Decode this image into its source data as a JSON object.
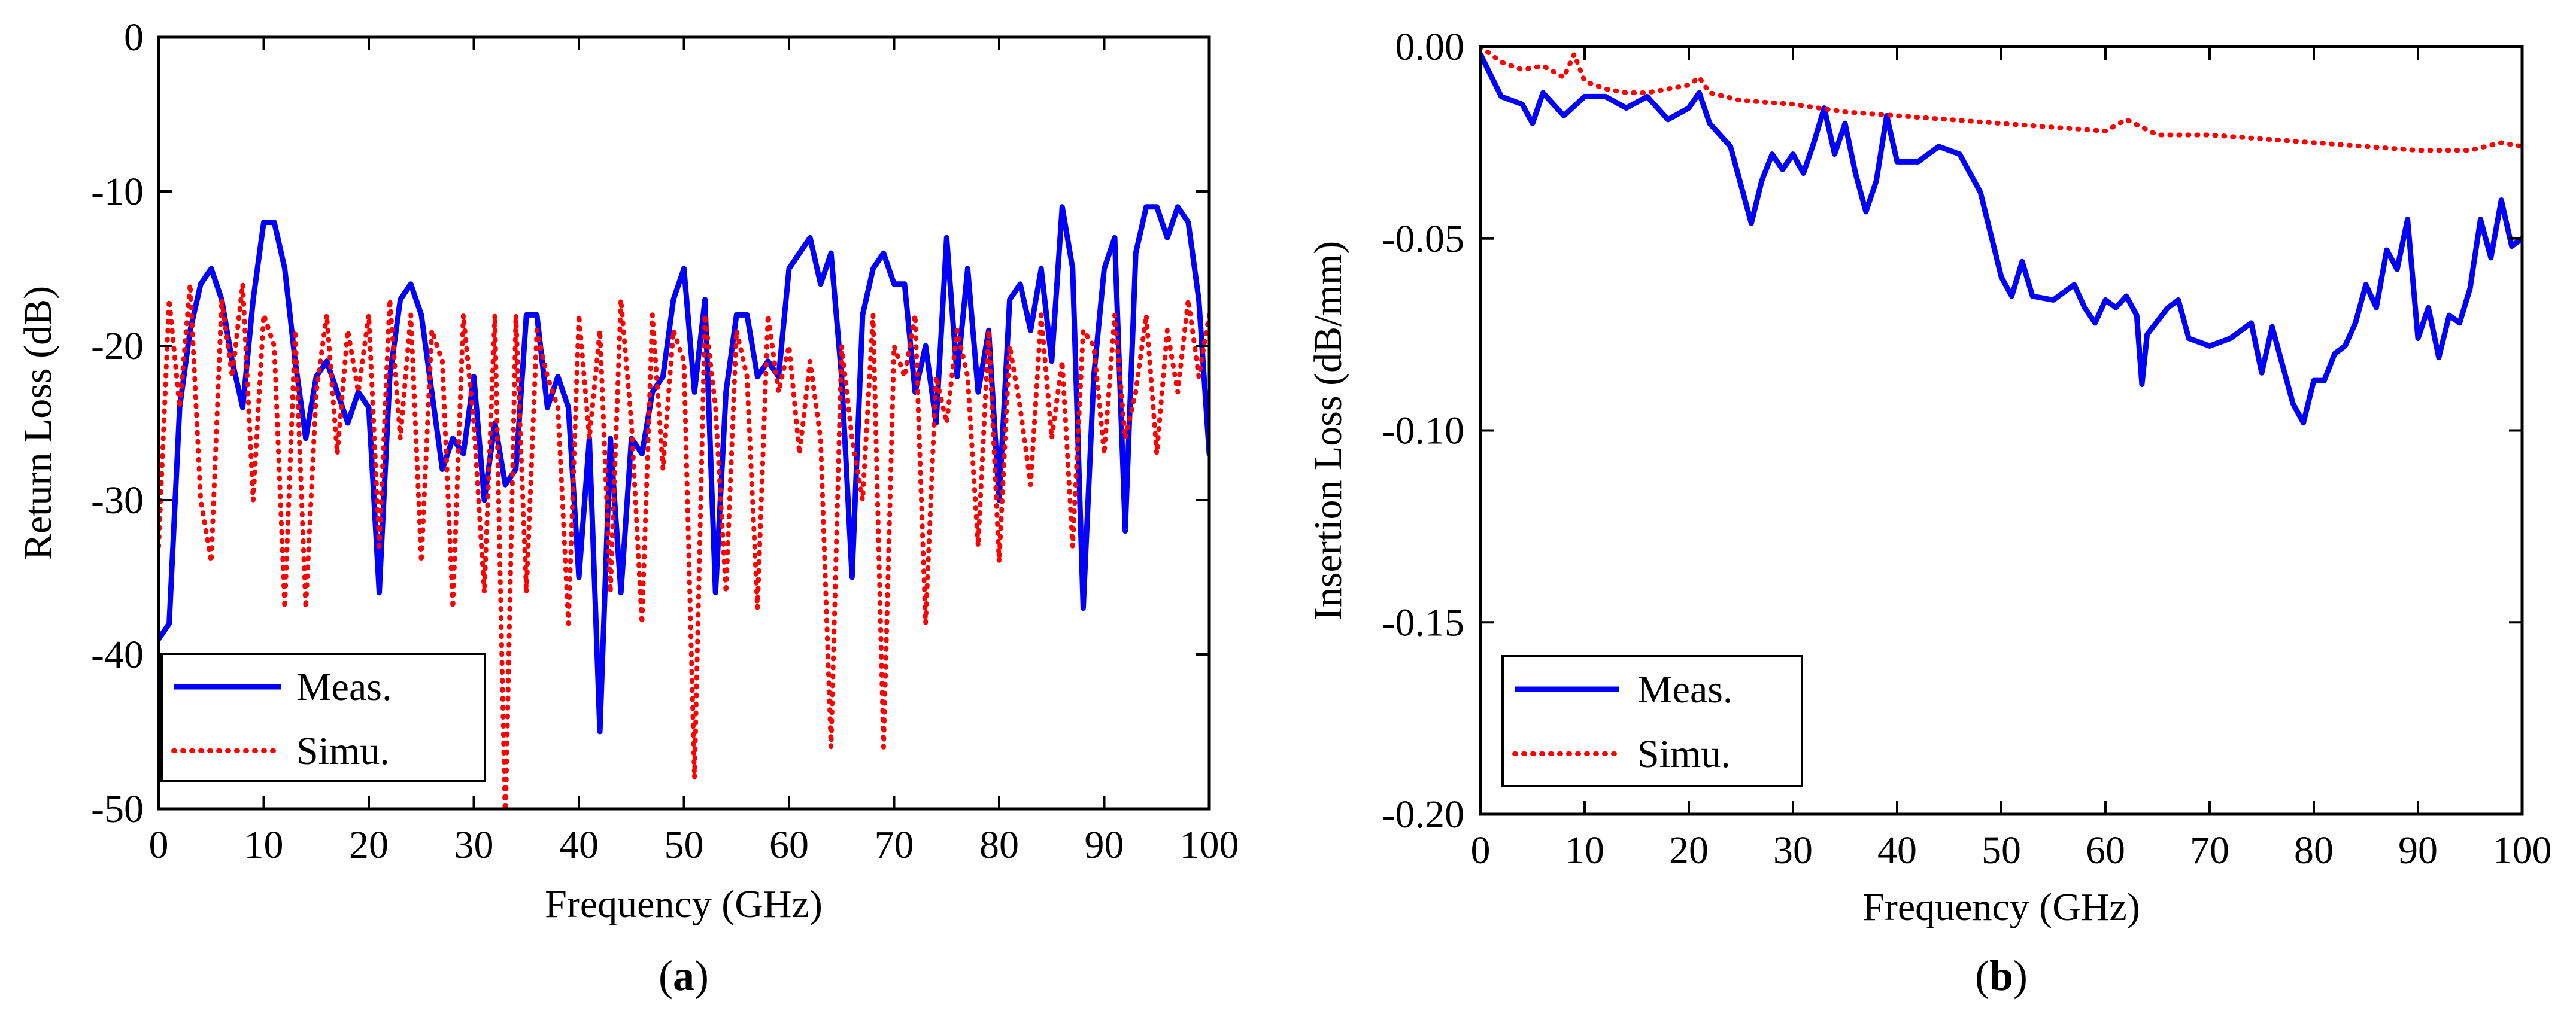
{
  "figure": {
    "panels": [
      {
        "label_open": "(",
        "label_letter": "a",
        "label_close": ")"
      },
      {
        "label_open": "(",
        "label_letter": "b",
        "label_close": ")"
      }
    ]
  },
  "chart_data": [
    {
      "type": "line",
      "title": "",
      "xlabel": "Frequency (GHz)",
      "ylabel": "Return Loss (dB)",
      "xlim": [
        0,
        100
      ],
      "ylim": [
        -50,
        0
      ],
      "x_ticks": [
        0,
        10,
        20,
        30,
        40,
        50,
        60,
        70,
        80,
        90,
        100
      ],
      "x_tick_labels": [
        "0",
        "10",
        "20",
        "30",
        "40",
        "50",
        "60",
        "70",
        "80",
        "90",
        "100"
      ],
      "y_ticks": [
        0,
        -10,
        -20,
        -30,
        -40,
        -50
      ],
      "y_tick_labels": [
        "0",
        "-10",
        "-20",
        "-30",
        "-40",
        "-50"
      ],
      "grid": false,
      "legend_position": "bottom-left",
      "series": [
        {
          "name": "Meas.",
          "color": "#0000ff",
          "style": "solid",
          "x": [
            0,
            1,
            2,
            3,
            4,
            5,
            6,
            7,
            8,
            9,
            10,
            11,
            12,
            13,
            14,
            15,
            16,
            17,
            18,
            19,
            20,
            21,
            22,
            23,
            24,
            25,
            26,
            27,
            28,
            29,
            30,
            31,
            32,
            33,
            34,
            35,
            36,
            37,
            38,
            39,
            40,
            41,
            42,
            43,
            44,
            45,
            46,
            47,
            48,
            49,
            50,
            51,
            52,
            53,
            54,
            55,
            56,
            57,
            58,
            59,
            60,
            61,
            62,
            63,
            64,
            65,
            66,
            67,
            68,
            69,
            70,
            71,
            72,
            73,
            74,
            75,
            76,
            77,
            78,
            79,
            80,
            81,
            82,
            83,
            84,
            85,
            86,
            87,
            88,
            89,
            90,
            91,
            92,
            93,
            94,
            95,
            96,
            97,
            98,
            99,
            100
          ],
          "y": [
            -39,
            -38,
            -24,
            -19,
            -16,
            -15,
            -17,
            -21,
            -24,
            -17,
            -12,
            -12,
            -15,
            -21,
            -26,
            -22,
            -21,
            -23,
            -25,
            -23,
            -24,
            -36,
            -22,
            -17,
            -16,
            -18,
            -23,
            -28,
            -26,
            -27,
            -22,
            -30,
            -25,
            -29,
            -28,
            -18,
            -18,
            -24,
            -22,
            -24,
            -35,
            -26,
            -45,
            -26,
            -36,
            -26,
            -27,
            -23,
            -22,
            -17,
            -15,
            -23,
            -17,
            -36,
            -23,
            -18,
            -18,
            -22,
            -21,
            -22,
            -15,
            -14,
            -13,
            -16,
            -14,
            -22,
            -35,
            -18,
            -15,
            -14,
            -16,
            -16,
            -23,
            -20,
            -25,
            -13,
            -22,
            -15,
            -23,
            -19,
            -30,
            -17,
            -16,
            -19,
            -15,
            -21,
            -11,
            -15,
            -37,
            -22,
            -15,
            -13,
            -32,
            -14,
            -11,
            -11,
            -13,
            -11,
            -12,
            -17,
            -27
          ]
        },
        {
          "name": "Simu.",
          "color": "#ff0000",
          "style": "dotted",
          "x": [
            0,
            1,
            2,
            3,
            4,
            5,
            6,
            7,
            8,
            9,
            10,
            11,
            12,
            13,
            14,
            15,
            16,
            17,
            18,
            19,
            20,
            21,
            22,
            23,
            24,
            25,
            26,
            27,
            28,
            29,
            30,
            31,
            32,
            33,
            34,
            35,
            36,
            37,
            38,
            39,
            40,
            41,
            42,
            43,
            44,
            45,
            46,
            47,
            48,
            49,
            50,
            51,
            52,
            53,
            54,
            55,
            56,
            57,
            58,
            59,
            60,
            61,
            62,
            63,
            64,
            65,
            66,
            67,
            68,
            69,
            70,
            71,
            72,
            73,
            74,
            75,
            76,
            77,
            78,
            79,
            80,
            81,
            82,
            83,
            84,
            85,
            86,
            87,
            88,
            89,
            90,
            91,
            92,
            93,
            94,
            95,
            96,
            97,
            98,
            99,
            100
          ],
          "y": [
            -33,
            -17,
            -24,
            -16,
            -30,
            -34,
            -17,
            -22,
            -16,
            -30,
            -18,
            -20,
            -37,
            -19,
            -37,
            -23,
            -18,
            -27,
            -19,
            -23,
            -18,
            -33,
            -17,
            -26,
            -18,
            -34,
            -19,
            -21,
            -37,
            -18,
            -25,
            -36,
            -18,
            -51,
            -18,
            -36,
            -19,
            -22,
            -24,
            -38,
            -18,
            -26,
            -19,
            -36,
            -17,
            -25,
            -38,
            -18,
            -28,
            -19,
            -21,
            -48,
            -18,
            -24,
            -36,
            -19,
            -22,
            -37,
            -18,
            -23,
            -20,
            -27,
            -21,
            -26,
            -46,
            -20,
            -26,
            -30,
            -18,
            -46,
            -20,
            -22,
            -18,
            -38,
            -22,
            -25,
            -19,
            -22,
            -33,
            -19,
            -34,
            -20,
            -24,
            -29,
            -18,
            -26,
            -21,
            -33,
            -19,
            -20,
            -27,
            -18,
            -26,
            -23,
            -18,
            -27,
            -19,
            -23,
            -17,
            -22,
            -18
          ]
        }
      ]
    },
    {
      "type": "line",
      "title": "",
      "xlabel": "Frequency (GHz)",
      "ylabel": "Insertion Loss (dB/mm)",
      "xlim": [
        0,
        100
      ],
      "ylim": [
        -0.2,
        0
      ],
      "x_ticks": [
        0,
        10,
        20,
        30,
        40,
        50,
        60,
        70,
        80,
        90,
        100
      ],
      "x_tick_labels": [
        "0",
        "10",
        "20",
        "30",
        "40",
        "50",
        "60",
        "70",
        "80",
        "90",
        "100"
      ],
      "y_ticks": [
        0,
        -0.05,
        -0.1,
        -0.15,
        -0.2
      ],
      "y_tick_labels": [
        "0.00",
        "-0.05",
        "-0.10",
        "-0.15",
        "-0.20"
      ],
      "grid": false,
      "legend_position": "bottom-left",
      "series": [
        {
          "name": "Meas.",
          "color": "#0000ff",
          "style": "solid",
          "x": [
            0,
            2,
            4,
            5,
            6,
            8,
            10,
            12,
            14,
            16,
            18,
            20,
            21,
            22,
            24,
            26,
            27,
            28,
            29,
            30,
            31,
            32,
            33,
            34,
            35,
            36,
            37,
            38,
            39,
            40,
            42,
            44,
            46,
            48,
            50,
            51,
            52,
            53,
            55,
            57,
            58,
            59,
            60,
            61,
            62,
            63,
            63.5,
            64,
            66,
            67,
            68,
            70,
            72,
            74,
            75,
            76,
            78,
            79,
            80,
            81,
            82,
            83,
            84,
            85,
            86,
            87,
            88,
            89,
            90,
            91,
            92,
            93,
            94,
            95,
            96,
            97,
            98,
            99,
            100
          ],
          "y": [
            -0.002,
            -0.013,
            -0.015,
            -0.02,
            -0.012,
            -0.018,
            -0.013,
            -0.013,
            -0.016,
            -0.013,
            -0.019,
            -0.016,
            -0.012,
            -0.02,
            -0.026,
            -0.046,
            -0.035,
            -0.028,
            -0.032,
            -0.028,
            -0.033,
            -0.025,
            -0.016,
            -0.028,
            -0.02,
            -0.033,
            -0.043,
            -0.035,
            -0.018,
            -0.03,
            -0.03,
            -0.026,
            -0.028,
            -0.038,
            -0.06,
            -0.065,
            -0.056,
            -0.065,
            -0.066,
            -0.062,
            -0.068,
            -0.072,
            -0.066,
            -0.068,
            -0.065,
            -0.07,
            -0.088,
            -0.075,
            -0.068,
            -0.066,
            -0.076,
            -0.078,
            -0.076,
            -0.072,
            -0.085,
            -0.073,
            -0.093,
            -0.098,
            -0.087,
            -0.087,
            -0.08,
            -0.078,
            -0.072,
            -0.062,
            -0.068,
            -0.053,
            -0.058,
            -0.045,
            -0.076,
            -0.068,
            -0.081,
            -0.07,
            -0.072,
            -0.063,
            -0.045,
            -0.055,
            -0.04,
            -0.052,
            -0.05
          ]
        },
        {
          "name": "Simu.",
          "color": "#ff0000",
          "style": "dotted",
          "x": [
            0,
            2,
            4,
            6,
            8,
            9,
            10,
            12,
            14,
            16,
            18,
            20,
            21,
            22,
            25,
            30,
            35,
            40,
            45,
            50,
            55,
            60,
            62,
            65,
            70,
            75,
            80,
            85,
            90,
            95,
            98,
            100
          ],
          "y": [
            0,
            -0.004,
            -0.006,
            -0.005,
            -0.008,
            -0.002,
            -0.009,
            -0.011,
            -0.012,
            -0.012,
            -0.011,
            -0.01,
            -0.008,
            -0.012,
            -0.014,
            -0.015,
            -0.017,
            -0.018,
            -0.019,
            -0.02,
            -0.021,
            -0.022,
            -0.019,
            -0.023,
            -0.023,
            -0.024,
            -0.025,
            -0.026,
            -0.027,
            -0.027,
            -0.025,
            -0.026
          ]
        }
      ]
    }
  ]
}
